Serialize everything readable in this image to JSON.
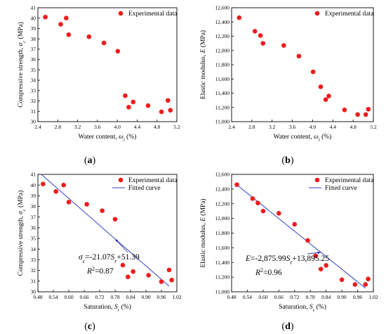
{
  "chart_data": [
    {
      "type": "scatter",
      "panel_label": "(a)",
      "xlabel": "Water content,  ωl (%)",
      "ylabel": "Compressive strength, σc (MPa)",
      "xlim": [
        2.4,
        5.2
      ],
      "ylim": [
        30,
        41
      ],
      "xticks": [
        "2.4",
        "2.8",
        "3.2",
        "3.6",
        "4.0",
        "4.4",
        "4.8",
        "5.2"
      ],
      "yticks": [
        "30",
        "31",
        "32",
        "33",
        "34",
        "35",
        "36",
        "37",
        "38",
        "39",
        "40",
        "41"
      ],
      "legend_position": "top-right",
      "series": [
        {
          "name": "Experimental data",
          "kind": "points",
          "color": "#ee1c1c",
          "points": [
            [
              2.55,
              40.1
            ],
            [
              2.86,
              39.4
            ],
            [
              2.97,
              40.0
            ],
            [
              3.02,
              38.4
            ],
            [
              3.43,
              38.2
            ],
            [
              3.73,
              37.6
            ],
            [
              4.01,
              36.8
            ],
            [
              4.16,
              32.5
            ],
            [
              4.23,
              31.4
            ],
            [
              4.32,
              31.9
            ],
            [
              4.62,
              31.55
            ],
            [
              4.89,
              30.95
            ],
            [
              5.02,
              32.05
            ],
            [
              5.07,
              31.1
            ]
          ]
        }
      ]
    },
    {
      "type": "scatter",
      "panel_label": "(b)",
      "xlabel": "Water content,  ωl (%)",
      "ylabel": "Elastic modulus, E (MPa)",
      "xlim": [
        2.4,
        5.2
      ],
      "ylim": [
        11000,
        12600
      ],
      "xticks": [
        "2.4",
        "2.8",
        "3.2",
        "3.6",
        "4.0",
        "4.4",
        "4.8",
        "5.2"
      ],
      "yticks": [
        "11,000",
        "11,200",
        "11,400",
        "11,600",
        "11,800",
        "12,000",
        "12,200",
        "12,400",
        "12,600"
      ],
      "legend_position": "top-right",
      "series": [
        {
          "name": "Experimental data",
          "kind": "points",
          "color": "#ee1c1c",
          "points": [
            [
              2.55,
              12460
            ],
            [
              2.86,
              12270
            ],
            [
              2.97,
              12210
            ],
            [
              3.02,
              12100
            ],
            [
              3.43,
              12070
            ],
            [
              3.73,
              11920
            ],
            [
              4.01,
              11700
            ],
            [
              4.16,
              11490
            ],
            [
              4.26,
              11310
            ],
            [
              4.32,
              11360
            ],
            [
              4.63,
              11165
            ],
            [
              4.89,
              11100
            ],
            [
              5.05,
              11100
            ],
            [
              5.1,
              11175
            ]
          ]
        }
      ]
    },
    {
      "type": "scatter",
      "panel_label": "(c)",
      "xlabel": "Saturation, Sr (%)",
      "ylabel": "Compressive strength, σc (MPa)",
      "xlim": [
        0.48,
        1.02
      ],
      "ylim": [
        30,
        41
      ],
      "xticks": [
        "0.48",
        "0.54",
        "0.60",
        "0.66",
        "0.72",
        "0.78",
        "0.84",
        "0.90",
        "0.96",
        "1.02"
      ],
      "yticks": [
        "30",
        "31",
        "32",
        "33",
        "34",
        "35",
        "36",
        "37",
        "38",
        "39",
        "40",
        "41"
      ],
      "legend_position": "top-right",
      "equation": "σc=-21.07Sr+51.39",
      "r_squared": "R2=0.87",
      "series": [
        {
          "name": "Experimental data",
          "kind": "points",
          "color": "#ee1c1c",
          "points": [
            [
              0.5,
              40.1
            ],
            [
              0.55,
              39.4
            ],
            [
              0.58,
              40.0
            ],
            [
              0.6,
              38.4
            ],
            [
              0.67,
              38.2
            ],
            [
              0.73,
              37.6
            ],
            [
              0.78,
              36.8
            ],
            [
              0.81,
              32.5
            ],
            [
              0.83,
              31.4
            ],
            [
              0.85,
              31.9
            ],
            [
              0.91,
              31.55
            ],
            [
              0.96,
              30.95
            ],
            [
              0.99,
              32.05
            ],
            [
              1.0,
              31.1
            ]
          ]
        },
        {
          "name": "Fitted curve",
          "kind": "line",
          "color": "#2f3fbf",
          "points": [
            [
              0.495,
              40.96
            ],
            [
              0.99,
              30.53
            ]
          ]
        }
      ]
    },
    {
      "type": "scatter",
      "panel_label": "(d)",
      "xlabel": "Saturation, Sr (%)",
      "ylabel": "Elastic modulus, E (MPa)",
      "xlim": [
        0.48,
        1.02
      ],
      "ylim": [
        11000,
        12600
      ],
      "xticks": [
        "0.48",
        "0.54",
        "0.60",
        "0.66",
        "0.72",
        "0.78",
        "0.84",
        "0.90",
        "0.96",
        "1.02"
      ],
      "yticks": [
        "11,000",
        "11,200",
        "11,400",
        "11,600",
        "11,800",
        "12,000",
        "12,200",
        "12,400",
        "12,600"
      ],
      "legend_position": "top-right",
      "equation": "E=-2,875.99Sr+13,895.25",
      "r_squared": "R2=0.96",
      "series": [
        {
          "name": "Experimental data",
          "kind": "points",
          "color": "#ee1c1c",
          "points": [
            [
              0.5,
              12460
            ],
            [
              0.56,
              12270
            ],
            [
              0.58,
              12210
            ],
            [
              0.6,
              12100
            ],
            [
              0.66,
              12070
            ],
            [
              0.72,
              11920
            ],
            [
              0.77,
              11700
            ],
            [
              0.8,
              11490
            ],
            [
              0.82,
              11310
            ],
            [
              0.84,
              11360
            ],
            [
              0.9,
              11165
            ],
            [
              0.95,
              11100
            ],
            [
              0.99,
              11100
            ],
            [
              1.0,
              11175
            ]
          ]
        },
        {
          "name": "Fitted curve",
          "kind": "line",
          "color": "#2f3fbf",
          "points": [
            [
              0.495,
              12472
            ],
            [
              0.99,
              11049
            ]
          ]
        }
      ]
    }
  ]
}
